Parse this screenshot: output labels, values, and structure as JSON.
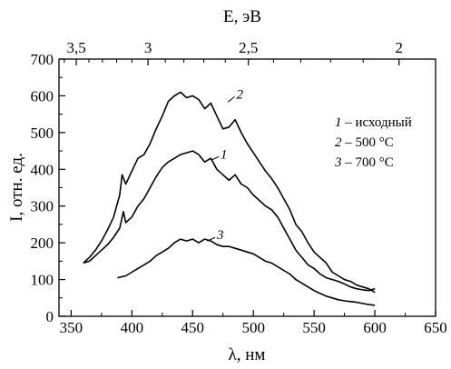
{
  "chart_data": {
    "type": "line",
    "xlabel": "λ, нм",
    "ylabel": "I, отн. ед.",
    "x2label": "E, эВ",
    "xlim": [
      340,
      650
    ],
    "ylim": [
      0,
      700
    ],
    "x_ticks": [
      350,
      400,
      450,
      500,
      550,
      600,
      650
    ],
    "y_ticks": [
      0,
      100,
      200,
      300,
      400,
      500,
      600,
      700
    ],
    "top_ticks": [
      {
        "label": "3,5",
        "energy_eV": 3.5
      },
      {
        "label": "3",
        "energy_eV": 3.0
      },
      {
        "label": "2,5",
        "energy_eV": 2.5
      },
      {
        "label": "2",
        "energy_eV": 2.0
      }
    ],
    "series": [
      {
        "name": "2",
        "legend": "500 °C",
        "x": [
          360,
          365,
          370,
          375,
          380,
          385,
          390,
          392,
          395,
          400,
          405,
          410,
          415,
          420,
          425,
          430,
          435,
          440,
          445,
          450,
          455,
          460,
          465,
          470,
          475,
          480,
          485,
          490,
          495,
          500,
          505,
          510,
          515,
          520,
          525,
          530,
          535,
          540,
          545,
          550,
          555,
          560,
          565,
          570,
          575,
          580,
          585,
          590,
          595,
          600
        ],
        "y": [
          145,
          160,
          180,
          205,
          235,
          270,
          330,
          385,
          360,
          395,
          430,
          440,
          470,
          510,
          545,
          585,
          600,
          610,
          595,
          600,
          590,
          565,
          580,
          545,
          510,
          515,
          535,
          500,
          470,
          445,
          420,
          395,
          375,
          350,
          320,
          290,
          250,
          230,
          200,
          175,
          160,
          145,
          120,
          110,
          100,
          95,
          85,
          80,
          75,
          65
        ]
      },
      {
        "name": "1",
        "legend": "исходный",
        "x": [
          360,
          365,
          370,
          375,
          380,
          385,
          390,
          393,
          395,
          400,
          405,
          410,
          415,
          420,
          425,
          430,
          435,
          440,
          445,
          450,
          455,
          460,
          465,
          470,
          475,
          480,
          485,
          490,
          495,
          500,
          505,
          510,
          515,
          520,
          525,
          530,
          535,
          540,
          545,
          550,
          555,
          560,
          565,
          570,
          575,
          580,
          585,
          590,
          595,
          600
        ],
        "y": [
          145,
          150,
          165,
          180,
          195,
          215,
          240,
          285,
          255,
          270,
          300,
          320,
          350,
          380,
          405,
          420,
          430,
          440,
          445,
          450,
          440,
          420,
          430,
          400,
          385,
          370,
          385,
          360,
          350,
          330,
          315,
          300,
          290,
          270,
          240,
          210,
          180,
          160,
          140,
          130,
          115,
          105,
          100,
          95,
          88,
          80,
          75,
          72,
          70,
          75
        ]
      },
      {
        "name": "3",
        "legend": "700 °C",
        "x": [
          388,
          395,
          400,
          405,
          410,
          415,
          420,
          425,
          430,
          435,
          440,
          445,
          450,
          455,
          460,
          465,
          470,
          475,
          480,
          485,
          490,
          495,
          500,
          505,
          510,
          515,
          520,
          525,
          530,
          535,
          540,
          545,
          550,
          555,
          560,
          565,
          570,
          575,
          580,
          585,
          590,
          595,
          600
        ],
        "y": [
          105,
          110,
          120,
          130,
          140,
          150,
          165,
          175,
          185,
          200,
          210,
          205,
          210,
          200,
          210,
          205,
          195,
          190,
          190,
          185,
          180,
          175,
          170,
          160,
          150,
          145,
          135,
          125,
          115,
          100,
          90,
          80,
          70,
          62,
          55,
          50,
          45,
          42,
          40,
          38,
          35,
          32,
          30
        ]
      }
    ],
    "legend": [
      {
        "num": "1",
        "text": "исходный"
      },
      {
        "num": "2",
        "text": "500 °C"
      },
      {
        "num": "3",
        "text": "700 °C"
      }
    ],
    "legend_position": "top-right"
  }
}
